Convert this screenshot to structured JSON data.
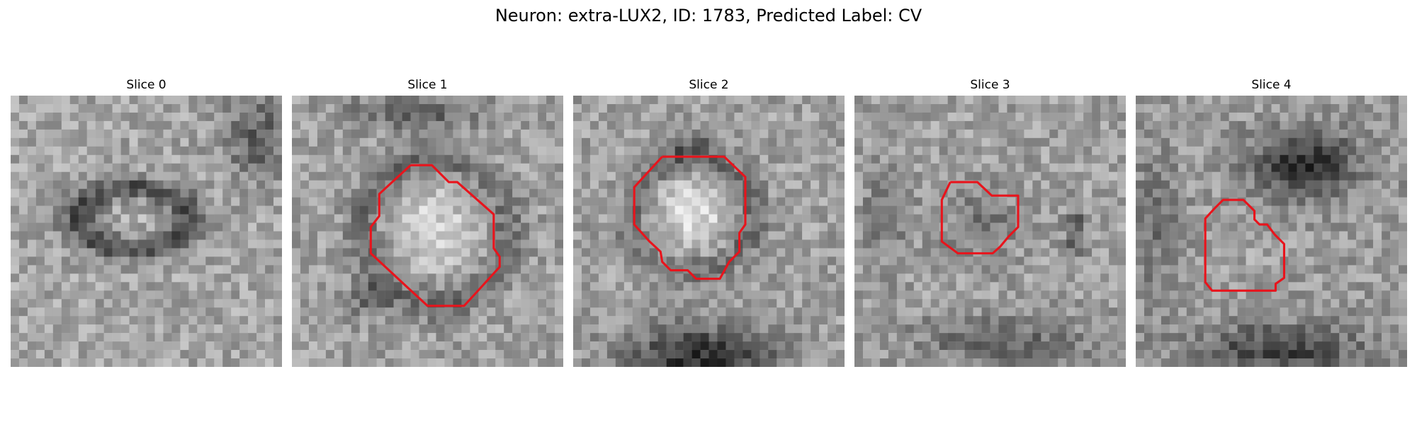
{
  "figure": {
    "title": "Neuron: extra-LUX2, ID: 1783, Predicted Label: CV"
  },
  "panels": [
    {
      "title": "Slice 0",
      "has_contour": false
    },
    {
      "title": "Slice 1",
      "has_contour": true
    },
    {
      "title": "Slice 2",
      "has_contour": true
    },
    {
      "title": "Slice 3",
      "has_contour": true
    },
    {
      "title": "Slice 4",
      "has_contour": true
    }
  ],
  "colors": {
    "contour": "#e8141c",
    "background": "#ffffff"
  },
  "colormap": "grayscale"
}
